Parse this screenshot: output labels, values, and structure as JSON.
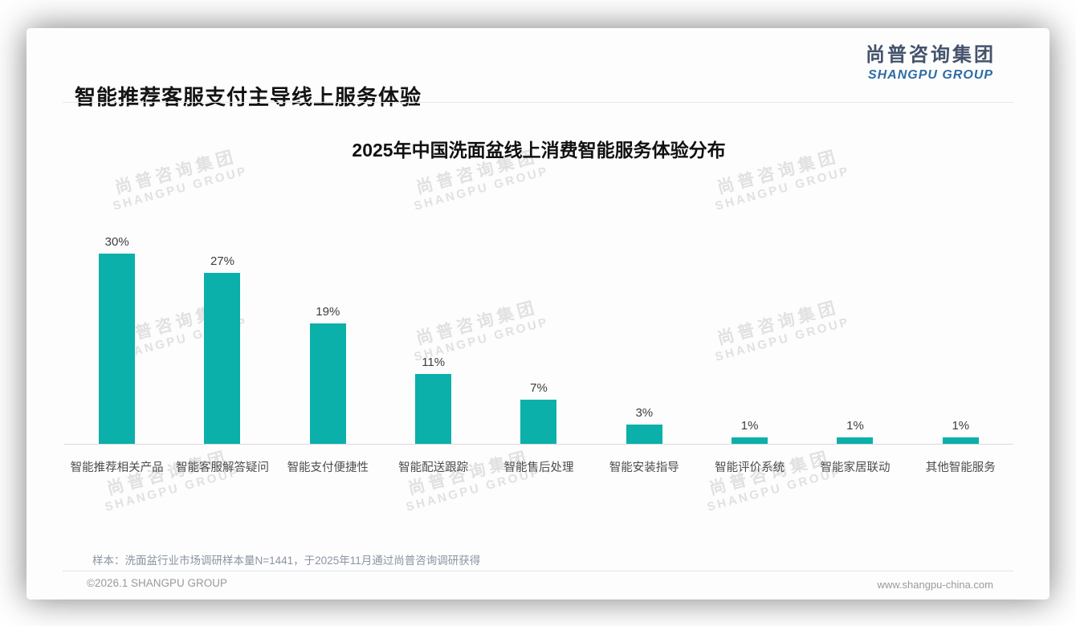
{
  "page": {
    "header_title": "智能推荐客服支付主导线上服务体验",
    "logo": {
      "cn": "尚普咨询集团",
      "en": "SHANGPU GROUP"
    },
    "note": "样本：洗面盆行业市场调研样本量N=1441，于2025年11月通过尚普咨询调研获得",
    "footer": {
      "left": "©2026.1 SHANGPU GROUP",
      "right": "www.shangpu-china.com"
    },
    "watermark": {
      "cn": "尚普咨询集团",
      "en": "SHANGPU GROUP"
    }
  },
  "colors": {
    "bar_teal": "#0AB0A9",
    "logo_blue": "#2e6ba6",
    "logo_dark": "#44536b",
    "note_gray_blue": "#8b94a4",
    "axis_line": "#d9d9d9"
  },
  "chart_data": {
    "type": "bar",
    "title": "2025年中国洗面盆线上消费智能服务体验分布",
    "categories": [
      "智能推荐相关产品",
      "智能客服解答疑问",
      "智能支付便捷性",
      "智能配送跟踪",
      "智能售后处理",
      "智能安装指导",
      "智能评价系统",
      "智能家居联动",
      "其他智能服务"
    ],
    "values": [
      30,
      27,
      19,
      11,
      7,
      3,
      1,
      1,
      1
    ],
    "value_labels": [
      "30%",
      "27%",
      "19%",
      "11%",
      "7%",
      "3%",
      "1%",
      "1%",
      "1%"
    ],
    "unit": "%",
    "xlabel": "",
    "ylabel": "",
    "ylim": [
      0,
      32
    ],
    "grid": false,
    "legend": "none",
    "bar_color": "#0AB0A9"
  }
}
